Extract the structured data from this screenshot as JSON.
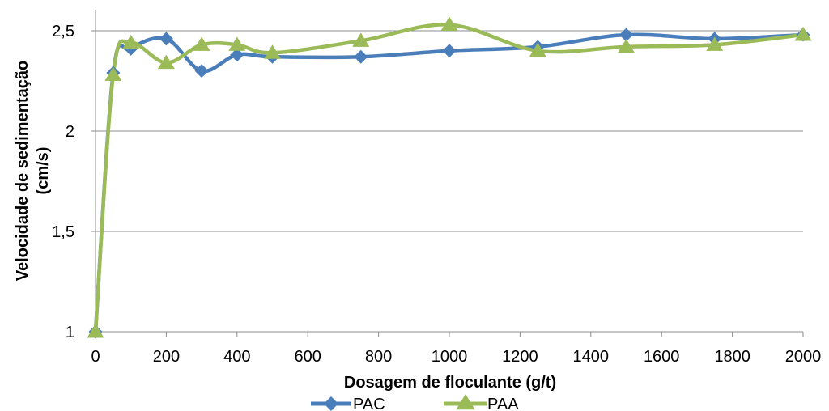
{
  "chart_data": {
    "type": "line",
    "smooth": true,
    "xlabel": "Dosagem de floculante (g/t)",
    "ylabel_line1": "Velocidade de sedimentação",
    "ylabel_line2": "(cm/s)",
    "xlim": [
      0,
      2000
    ],
    "ylim": [
      1,
      2.5
    ],
    "x_ticks": [
      0,
      200,
      400,
      600,
      800,
      1000,
      1200,
      1400,
      1600,
      1800,
      2000
    ],
    "x_tick_labels": [
      "0",
      "200",
      "400",
      "600",
      "800",
      "1000",
      "1200",
      "1400",
      "1600",
      "1800",
      "2000"
    ],
    "y_ticks": [
      1,
      1.5,
      2,
      2.5
    ],
    "y_tick_labels": [
      "1",
      "1,5",
      "2",
      "2,5"
    ],
    "grid": "horizontal",
    "legend_position": "bottom",
    "series": [
      {
        "name": "PAC",
        "color": "#4a7ebb",
        "marker": "diamond",
        "x": [
          0,
          50,
          100,
          200,
          300,
          400,
          500,
          750,
          1000,
          1250,
          1500,
          1750,
          2000
        ],
        "y": [
          1.0,
          2.29,
          2.41,
          2.46,
          2.3,
          2.38,
          2.37,
          2.37,
          2.4,
          2.42,
          2.48,
          2.46,
          2.48
        ]
      },
      {
        "name": "PAA",
        "color": "#9bbb59",
        "marker": "triangle",
        "x": [
          0,
          50,
          100,
          200,
          300,
          400,
          500,
          750,
          1000,
          1250,
          1500,
          1750,
          2000
        ],
        "y": [
          1.0,
          2.28,
          2.44,
          2.34,
          2.43,
          2.43,
          2.39,
          2.45,
          2.53,
          2.4,
          2.42,
          2.43,
          2.48
        ]
      }
    ]
  }
}
